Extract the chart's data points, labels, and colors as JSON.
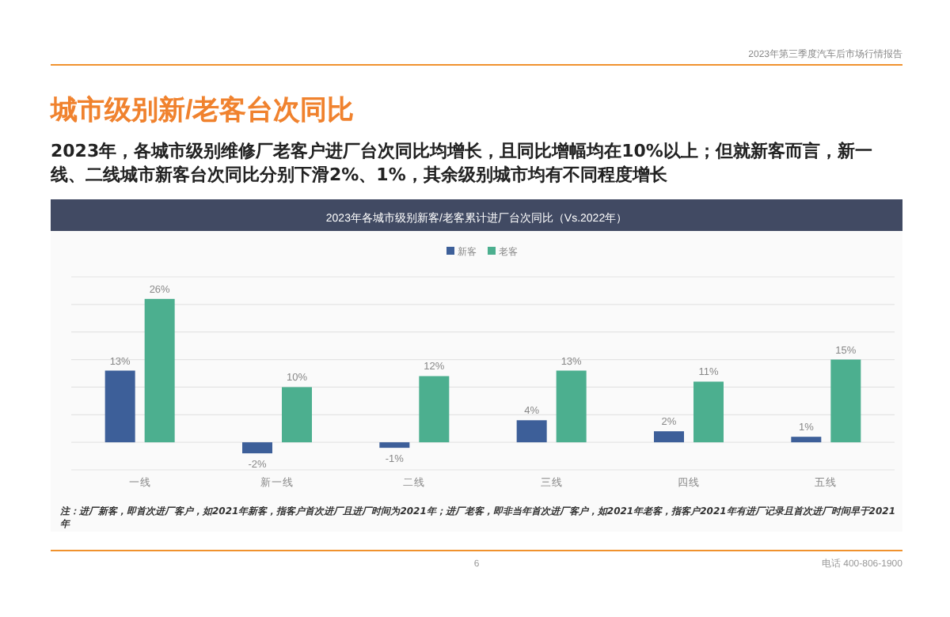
{
  "chart_data": {
    "type": "bar",
    "title": "城市级别新/老客台次同比",
    "subtitle": "2023年，各城市级别维修厂老客户进厂台次同比均增长，且同比增幅均在10%以上；但就新客而言，新一线、二线城市新客台次同比分别下滑2%、1%，其余级别城市均有不同程度增长",
    "xlabel": "2023年各城市级别新客/老客累计进厂台次同比（Vs.2022年）",
    "categories": [
      "一线",
      "新一线",
      "二线",
      "三线",
      "四线",
      "五线"
    ],
    "series": [
      {
        "name": "新客",
        "color": "#3d5f99",
        "values": [
          13,
          -2,
          -1,
          4,
          2,
          1
        ],
        "value_labels": [
          "13%",
          "-2%",
          "-1%",
          "4%",
          "2%",
          "1%"
        ]
      },
      {
        "name": "老客",
        "color": "#4caf8f",
        "values": [
          26,
          10,
          12,
          13,
          11,
          15
        ],
        "value_labels": [
          "26%",
          "10%",
          "12%",
          "13%",
          "11%",
          "15%"
        ]
      }
    ],
    "ylim": [
      -5,
      30
    ],
    "yticks": [
      {
        "value": -5,
        "label": null
      },
      {
        "value": 0,
        "label": null
      },
      {
        "value": 5,
        "label": null
      },
      {
        "value": 10,
        "label": null
      },
      {
        "value": 15,
        "label": null
      },
      {
        "value": 20,
        "label": null
      },
      {
        "value": 25,
        "label": null
      },
      {
        "value": 30,
        "label": null
      }
    ],
    "tick_labels": "x",
    "grid": "y",
    "legend": "top",
    "annotations": [
      "2023年第三季度汽车后市场行情报告",
      "注：进厂新客，即首次进厂客户，如2021年新客，指客户首次进厂且进厂时间为2021年；进厂老客，即非当年首次进厂客户，如2021年老客，指客户2021年有进厂记录且首次进厂时间早于2021年",
      "6",
      "电话 400-806-1900"
    ]
  }
}
